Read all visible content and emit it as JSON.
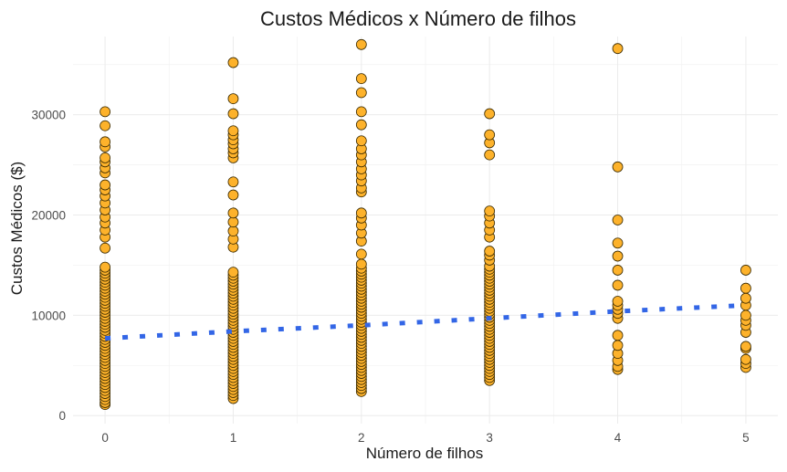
{
  "chart_data": {
    "type": "scatter",
    "title": "Custos Médicos x Número de filhos",
    "xlabel": "Número de filhos",
    "ylabel": "Custos Médicos ($)",
    "x_ticks": [
      "0",
      "1",
      "2",
      "3",
      "4",
      "5"
    ],
    "y_ticks": [
      "0",
      "10000",
      "20000",
      "30000"
    ],
    "xlim": [
      -0.25,
      5.25
    ],
    "ylim": [
      -800,
      37800
    ],
    "grid": true,
    "legend": "none",
    "colors": {
      "points": "#FDB22B",
      "point_outline": "#3a2a00",
      "trend": "#3366E6"
    },
    "series": [
      {
        "values": [
          {
            "x": 0,
            "y": 1100
          },
          {
            "x": 0,
            "y": 1300
          },
          {
            "x": 0,
            "y": 1600
          },
          {
            "x": 0,
            "y": 1900
          },
          {
            "x": 0,
            "y": 2200
          },
          {
            "x": 0,
            "y": 2500
          },
          {
            "x": 0,
            "y": 2800
          },
          {
            "x": 0,
            "y": 3100
          },
          {
            "x": 0,
            "y": 3400
          },
          {
            "x": 0,
            "y": 3700
          },
          {
            "x": 0,
            "y": 4000
          },
          {
            "x": 0,
            "y": 4300
          },
          {
            "x": 0,
            "y": 4600
          },
          {
            "x": 0,
            "y": 4900
          },
          {
            "x": 0,
            "y": 5200
          },
          {
            "x": 0,
            "y": 5500
          },
          {
            "x": 0,
            "y": 5800
          },
          {
            "x": 0,
            "y": 6100
          },
          {
            "x": 0,
            "y": 6400
          },
          {
            "x": 0,
            "y": 6700
          },
          {
            "x": 0,
            "y": 7000
          },
          {
            "x": 0,
            "y": 7300
          },
          {
            "x": 0,
            "y": 7600
          },
          {
            "x": 0,
            "y": 7900
          },
          {
            "x": 0,
            "y": 8200
          },
          {
            "x": 0,
            "y": 8500
          },
          {
            "x": 0,
            "y": 8800
          },
          {
            "x": 0,
            "y": 9100
          },
          {
            "x": 0,
            "y": 9400
          },
          {
            "x": 0,
            "y": 9700
          },
          {
            "x": 0,
            "y": 10000
          },
          {
            "x": 0,
            "y": 10300
          },
          {
            "x": 0,
            "y": 10600
          },
          {
            "x": 0,
            "y": 10900
          },
          {
            "x": 0,
            "y": 11200
          },
          {
            "x": 0,
            "y": 11500
          },
          {
            "x": 0,
            "y": 11800
          },
          {
            "x": 0,
            "y": 12100
          },
          {
            "x": 0,
            "y": 12400
          },
          {
            "x": 0,
            "y": 12700
          },
          {
            "x": 0,
            "y": 13000
          },
          {
            "x": 0,
            "y": 13300
          },
          {
            "x": 0,
            "y": 13600
          },
          {
            "x": 0,
            "y": 13900
          },
          {
            "x": 0,
            "y": 14200
          },
          {
            "x": 0,
            "y": 14500
          },
          {
            "x": 0,
            "y": 14800
          },
          {
            "x": 0,
            "y": 16700
          },
          {
            "x": 0,
            "y": 17800
          },
          {
            "x": 0,
            "y": 18500
          },
          {
            "x": 0,
            "y": 19200
          },
          {
            "x": 0,
            "y": 19800
          },
          {
            "x": 0,
            "y": 20500
          },
          {
            "x": 0,
            "y": 21200
          },
          {
            "x": 0,
            "y": 21900
          },
          {
            "x": 0,
            "y": 22500
          },
          {
            "x": 0,
            "y": 23000
          },
          {
            "x": 0,
            "y": 24200
          },
          {
            "x": 0,
            "y": 24700
          },
          {
            "x": 0,
            "y": 25300
          },
          {
            "x": 0,
            "y": 25700
          },
          {
            "x": 0,
            "y": 26800
          },
          {
            "x": 0,
            "y": 27300
          },
          {
            "x": 0,
            "y": 28900
          },
          {
            "x": 0,
            "y": 30300
          },
          {
            "x": 1,
            "y": 1700
          },
          {
            "x": 1,
            "y": 2000
          },
          {
            "x": 1,
            "y": 2300
          },
          {
            "x": 1,
            "y": 2600
          },
          {
            "x": 1,
            "y": 2900
          },
          {
            "x": 1,
            "y": 3200
          },
          {
            "x": 1,
            "y": 3500
          },
          {
            "x": 1,
            "y": 3800
          },
          {
            "x": 1,
            "y": 4100
          },
          {
            "x": 1,
            "y": 4400
          },
          {
            "x": 1,
            "y": 4700
          },
          {
            "x": 1,
            "y": 5000
          },
          {
            "x": 1,
            "y": 5300
          },
          {
            "x": 1,
            "y": 5600
          },
          {
            "x": 1,
            "y": 5900
          },
          {
            "x": 1,
            "y": 6200
          },
          {
            "x": 1,
            "y": 6500
          },
          {
            "x": 1,
            "y": 6800
          },
          {
            "x": 1,
            "y": 7100
          },
          {
            "x": 1,
            "y": 7400
          },
          {
            "x": 1,
            "y": 7700
          },
          {
            "x": 1,
            "y": 8000
          },
          {
            "x": 1,
            "y": 8300
          },
          {
            "x": 1,
            "y": 8600
          },
          {
            "x": 1,
            "y": 8900
          },
          {
            "x": 1,
            "y": 9200
          },
          {
            "x": 1,
            "y": 9500
          },
          {
            "x": 1,
            "y": 9800
          },
          {
            "x": 1,
            "y": 10100
          },
          {
            "x": 1,
            "y": 10400
          },
          {
            "x": 1,
            "y": 10700
          },
          {
            "x": 1,
            "y": 11000
          },
          {
            "x": 1,
            "y": 11300
          },
          {
            "x": 1,
            "y": 11600
          },
          {
            "x": 1,
            "y": 11900
          },
          {
            "x": 1,
            "y": 12200
          },
          {
            "x": 1,
            "y": 12500
          },
          {
            "x": 1,
            "y": 12800
          },
          {
            "x": 1,
            "y": 13100
          },
          {
            "x": 1,
            "y": 13400
          },
          {
            "x": 1,
            "y": 13700
          },
          {
            "x": 1,
            "y": 14000
          },
          {
            "x": 1,
            "y": 14300
          },
          {
            "x": 1,
            "y": 16800
          },
          {
            "x": 1,
            "y": 17600
          },
          {
            "x": 1,
            "y": 18400
          },
          {
            "x": 1,
            "y": 19300
          },
          {
            "x": 1,
            "y": 20200
          },
          {
            "x": 1,
            "y": 22000
          },
          {
            "x": 1,
            "y": 23300
          },
          {
            "x": 1,
            "y": 25700
          },
          {
            "x": 1,
            "y": 26200
          },
          {
            "x": 1,
            "y": 26600
          },
          {
            "x": 1,
            "y": 27100
          },
          {
            "x": 1,
            "y": 27500
          },
          {
            "x": 1,
            "y": 28000
          },
          {
            "x": 1,
            "y": 28400
          },
          {
            "x": 1,
            "y": 30100
          },
          {
            "x": 1,
            "y": 31600
          },
          {
            "x": 1,
            "y": 35200
          },
          {
            "x": 2,
            "y": 2400
          },
          {
            "x": 2,
            "y": 2700
          },
          {
            "x": 2,
            "y": 3000
          },
          {
            "x": 2,
            "y": 3300
          },
          {
            "x": 2,
            "y": 3600
          },
          {
            "x": 2,
            "y": 3900
          },
          {
            "x": 2,
            "y": 4200
          },
          {
            "x": 2,
            "y": 4500
          },
          {
            "x": 2,
            "y": 4800
          },
          {
            "x": 2,
            "y": 5100
          },
          {
            "x": 2,
            "y": 5400
          },
          {
            "x": 2,
            "y": 5700
          },
          {
            "x": 2,
            "y": 6000
          },
          {
            "x": 2,
            "y": 6300
          },
          {
            "x": 2,
            "y": 6600
          },
          {
            "x": 2,
            "y": 6900
          },
          {
            "x": 2,
            "y": 7200
          },
          {
            "x": 2,
            "y": 7500
          },
          {
            "x": 2,
            "y": 7800
          },
          {
            "x": 2,
            "y": 8100
          },
          {
            "x": 2,
            "y": 8400
          },
          {
            "x": 2,
            "y": 8700
          },
          {
            "x": 2,
            "y": 9000
          },
          {
            "x": 2,
            "y": 9300
          },
          {
            "x": 2,
            "y": 9600
          },
          {
            "x": 2,
            "y": 9900
          },
          {
            "x": 2,
            "y": 10200
          },
          {
            "x": 2,
            "y": 10500
          },
          {
            "x": 2,
            "y": 10800
          },
          {
            "x": 2,
            "y": 11100
          },
          {
            "x": 2,
            "y": 11400
          },
          {
            "x": 2,
            "y": 11700
          },
          {
            "x": 2,
            "y": 12000
          },
          {
            "x": 2,
            "y": 12300
          },
          {
            "x": 2,
            "y": 12600
          },
          {
            "x": 2,
            "y": 12900
          },
          {
            "x": 2,
            "y": 13200
          },
          {
            "x": 2,
            "y": 13500
          },
          {
            "x": 2,
            "y": 13800
          },
          {
            "x": 2,
            "y": 14100
          },
          {
            "x": 2,
            "y": 14400
          },
          {
            "x": 2,
            "y": 14700
          },
          {
            "x": 2,
            "y": 15100
          },
          {
            "x": 2,
            "y": 16100
          },
          {
            "x": 2,
            "y": 17400
          },
          {
            "x": 2,
            "y": 18200
          },
          {
            "x": 2,
            "y": 19000
          },
          {
            "x": 2,
            "y": 19700
          },
          {
            "x": 2,
            "y": 20200
          },
          {
            "x": 2,
            "y": 22300
          },
          {
            "x": 2,
            "y": 22700
          },
          {
            "x": 2,
            "y": 23400
          },
          {
            "x": 2,
            "y": 24000
          },
          {
            "x": 2,
            "y": 24600
          },
          {
            "x": 2,
            "y": 25300
          },
          {
            "x": 2,
            "y": 26000
          },
          {
            "x": 2,
            "y": 26600
          },
          {
            "x": 2,
            "y": 27400
          },
          {
            "x": 2,
            "y": 29000
          },
          {
            "x": 2,
            "y": 30300
          },
          {
            "x": 2,
            "y": 32200
          },
          {
            "x": 2,
            "y": 33600
          },
          {
            "x": 2,
            "y": 37000
          },
          {
            "x": 3,
            "y": 3500
          },
          {
            "x": 3,
            "y": 3800
          },
          {
            "x": 3,
            "y": 4100
          },
          {
            "x": 3,
            "y": 4400
          },
          {
            "x": 3,
            "y": 4700
          },
          {
            "x": 3,
            "y": 5000
          },
          {
            "x": 3,
            "y": 5300
          },
          {
            "x": 3,
            "y": 5600
          },
          {
            "x": 3,
            "y": 5900
          },
          {
            "x": 3,
            "y": 6200
          },
          {
            "x": 3,
            "y": 6500
          },
          {
            "x": 3,
            "y": 6800
          },
          {
            "x": 3,
            "y": 7100
          },
          {
            "x": 3,
            "y": 7400
          },
          {
            "x": 3,
            "y": 7700
          },
          {
            "x": 3,
            "y": 8000
          },
          {
            "x": 3,
            "y": 8300
          },
          {
            "x": 3,
            "y": 8600
          },
          {
            "x": 3,
            "y": 8900
          },
          {
            "x": 3,
            "y": 9200
          },
          {
            "x": 3,
            "y": 9500
          },
          {
            "x": 3,
            "y": 9800
          },
          {
            "x": 3,
            "y": 10100
          },
          {
            "x": 3,
            "y": 10400
          },
          {
            "x": 3,
            "y": 10700
          },
          {
            "x": 3,
            "y": 11000
          },
          {
            "x": 3,
            "y": 11300
          },
          {
            "x": 3,
            "y": 11600
          },
          {
            "x": 3,
            "y": 11900
          },
          {
            "x": 3,
            "y": 12200
          },
          {
            "x": 3,
            "y": 12500
          },
          {
            "x": 3,
            "y": 12800
          },
          {
            "x": 3,
            "y": 13100
          },
          {
            "x": 3,
            "y": 13400
          },
          {
            "x": 3,
            "y": 13700
          },
          {
            "x": 3,
            "y": 14000
          },
          {
            "x": 3,
            "y": 14300
          },
          {
            "x": 3,
            "y": 14600
          },
          {
            "x": 3,
            "y": 14900
          },
          {
            "x": 3,
            "y": 15500
          },
          {
            "x": 3,
            "y": 16000
          },
          {
            "x": 3,
            "y": 16400
          },
          {
            "x": 3,
            "y": 17800
          },
          {
            "x": 3,
            "y": 18500
          },
          {
            "x": 3,
            "y": 19200
          },
          {
            "x": 3,
            "y": 19900
          },
          {
            "x": 3,
            "y": 20400
          },
          {
            "x": 3,
            "y": 26000
          },
          {
            "x": 3,
            "y": 27200
          },
          {
            "x": 3,
            "y": 28000
          },
          {
            "x": 3,
            "y": 30100
          },
          {
            "x": 4,
            "y": 4600
          },
          {
            "x": 4,
            "y": 4900
          },
          {
            "x": 4,
            "y": 5500
          },
          {
            "x": 4,
            "y": 6200
          },
          {
            "x": 4,
            "y": 7000
          },
          {
            "x": 4,
            "y": 8000
          },
          {
            "x": 4,
            "y": 9700
          },
          {
            "x": 4,
            "y": 10200
          },
          {
            "x": 4,
            "y": 10600
          },
          {
            "x": 4,
            "y": 11000
          },
          {
            "x": 4,
            "y": 11400
          },
          {
            "x": 4,
            "y": 13000
          },
          {
            "x": 4,
            "y": 14500
          },
          {
            "x": 4,
            "y": 15900
          },
          {
            "x": 4,
            "y": 17200
          },
          {
            "x": 4,
            "y": 19500
          },
          {
            "x": 4,
            "y": 24800
          },
          {
            "x": 4,
            "y": 36600
          },
          {
            "x": 5,
            "y": 4800
          },
          {
            "x": 5,
            "y": 5200
          },
          {
            "x": 5,
            "y": 5600
          },
          {
            "x": 5,
            "y": 6700
          },
          {
            "x": 5,
            "y": 6900
          },
          {
            "x": 5,
            "y": 8300
          },
          {
            "x": 5,
            "y": 9000
          },
          {
            "x": 5,
            "y": 9500
          },
          {
            "x": 5,
            "y": 10000
          },
          {
            "x": 5,
            "y": 11000
          },
          {
            "x": 5,
            "y": 11700
          },
          {
            "x": 5,
            "y": 12700
          },
          {
            "x": 5,
            "y": 14500
          }
        ]
      }
    ],
    "trend": {
      "style": "dashed",
      "x": [
        0,
        1,
        2,
        3,
        4,
        5
      ],
      "y": [
        7700,
        8400,
        9000,
        9700,
        10400,
        11000
      ]
    }
  }
}
